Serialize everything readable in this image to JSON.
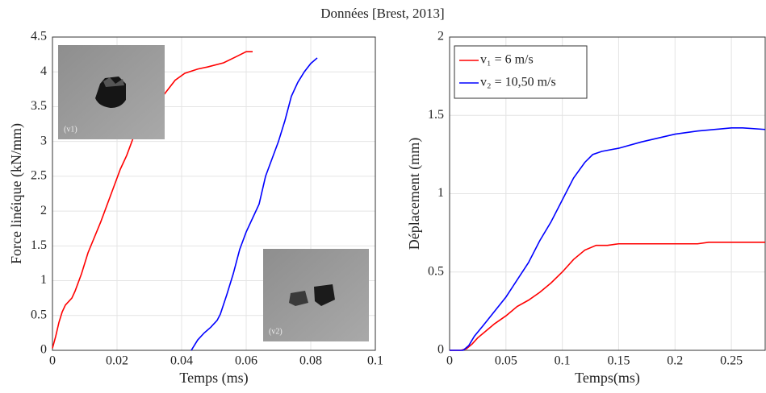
{
  "title": "Données [Brest, 2013]",
  "chart_data": [
    {
      "type": "line",
      "xlabel": "Temps (ms)",
      "ylabel": "Force linéique (kN/mm)",
      "xlim": [
        0,
        0.1
      ],
      "xticks": [
        0,
        0.02,
        0.04,
        0.06,
        0.08,
        0.1
      ],
      "ylim": [
        0,
        4.5
      ],
      "yticks": [
        0,
        0.5,
        1,
        1.5,
        2,
        2.5,
        3,
        3.5,
        4,
        4.5
      ],
      "grid": true,
      "annotations": [
        "(v1)",
        "(v2)"
      ],
      "series": [
        {
          "color": "#ff0000",
          "x": [
            0,
            0.001,
            0.002,
            0.003,
            0.004,
            0.006,
            0.007,
            0.009,
            0.011,
            0.015,
            0.019,
            0.021,
            0.023,
            0.025,
            0.028,
            0.035,
            0.038,
            0.041,
            0.045,
            0.048,
            0.053,
            0.057,
            0.06,
            0.062
          ],
          "values": [
            0.03,
            0.2,
            0.4,
            0.55,
            0.65,
            0.75,
            0.85,
            1.1,
            1.4,
            1.85,
            2.35,
            2.6,
            2.8,
            3.05,
            3.3,
            3.7,
            3.88,
            3.98,
            4.04,
            4.07,
            4.13,
            4.22,
            4.29,
            4.29
          ]
        },
        {
          "color": "#0000ff",
          "x": [
            0.043,
            0.045,
            0.047,
            0.049,
            0.051,
            0.052,
            0.054,
            0.056,
            0.058,
            0.06,
            0.062,
            0.064,
            0.066,
            0.068,
            0.07,
            0.072,
            0.074,
            0.076,
            0.078,
            0.08,
            0.082
          ],
          "values": [
            0,
            0.15,
            0.25,
            0.33,
            0.43,
            0.52,
            0.8,
            1.1,
            1.45,
            1.7,
            1.9,
            2.1,
            2.5,
            2.75,
            3.0,
            3.3,
            3.65,
            3.85,
            4.0,
            4.12,
            4.2
          ]
        }
      ]
    },
    {
      "type": "line",
      "xlabel": "Temps(ms)",
      "ylabel": "Déplacement (mm)",
      "xlim": [
        0,
        0.28
      ],
      "xticks": [
        0,
        0.05,
        0.1,
        0.15,
        0.2,
        0.25
      ],
      "ylim": [
        0,
        2
      ],
      "yticks": [
        0,
        0.5,
        1,
        1.5,
        2
      ],
      "grid": true,
      "legend": "upper left",
      "series": [
        {
          "name": "v₁ = 6 m/s",
          "color": "#ff0000",
          "x": [
            0,
            0.01,
            0.015,
            0.02,
            0.025,
            0.03,
            0.04,
            0.05,
            0.06,
            0.07,
            0.08,
            0.09,
            0.1,
            0.11,
            0.12,
            0.13,
            0.14,
            0.15,
            0.2,
            0.22,
            0.23,
            0.28
          ],
          "values": [
            0,
            0,
            0.01,
            0.04,
            0.08,
            0.11,
            0.17,
            0.22,
            0.28,
            0.32,
            0.37,
            0.43,
            0.5,
            0.58,
            0.64,
            0.67,
            0.67,
            0.68,
            0.68,
            0.68,
            0.69,
            0.69
          ]
        },
        {
          "name": "v₂ = 10,50 m/s",
          "color": "#0000ff",
          "x": [
            0,
            0.012,
            0.017,
            0.022,
            0.03,
            0.04,
            0.05,
            0.06,
            0.07,
            0.08,
            0.09,
            0.1,
            0.11,
            0.12,
            0.127,
            0.135,
            0.15,
            0.17,
            0.2,
            0.22,
            0.25,
            0.26,
            0.28
          ],
          "values": [
            0,
            0,
            0.03,
            0.09,
            0.16,
            0.25,
            0.34,
            0.45,
            0.56,
            0.7,
            0.82,
            0.96,
            1.1,
            1.2,
            1.25,
            1.27,
            1.29,
            1.33,
            1.38,
            1.4,
            1.42,
            1.42,
            1.41
          ]
        }
      ]
    }
  ]
}
